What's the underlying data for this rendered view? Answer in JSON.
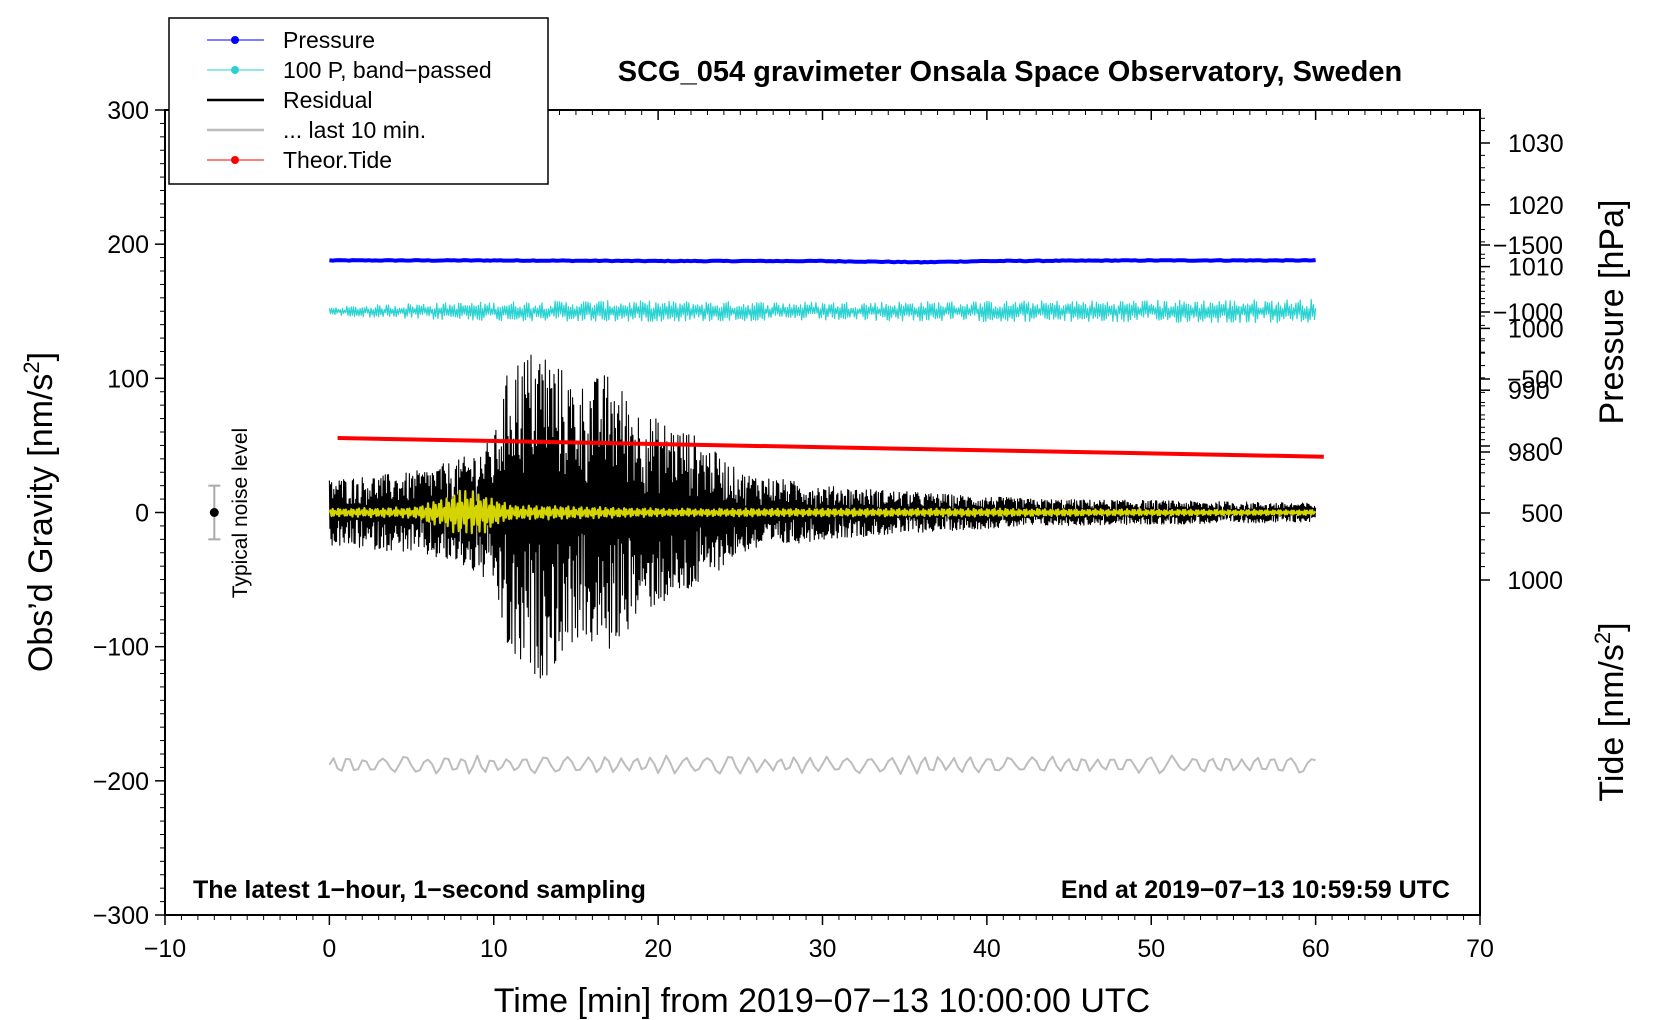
{
  "chart_data": {
    "type": "line",
    "title": "SCG_054 gravimeter Onsala Space Observatory, Sweden",
    "xlabel": "Time [min] from 2019−07−13 10:00:00 UTC",
    "ylabel_left": "Obs’d Gravity [nm/s",
    "ylabel_left_sup": "2",
    "ylabel_left_close": "]",
    "ylabel_right_pressure": "Pressure [hPa]",
    "ylabel_right_tide": "Tide [nm/s",
    "ylabel_right_tide_sup": "2",
    "ylabel_right_tide_close": "]",
    "xlim": [
      -10,
      70
    ],
    "ylim_left": [
      -300,
      300
    ],
    "x_ticks": [
      "−10",
      "0",
      "10",
      "20",
      "30",
      "40",
      "50",
      "60",
      "70"
    ],
    "y_left_ticks": [
      "300",
      "200",
      "100",
      "0",
      "−100",
      "−200",
      "−300"
    ],
    "pressure_axis": {
      "ticks": [
        "1030",
        "1020",
        "1010",
        "1000",
        "990",
        "980"
      ],
      "values": [
        1030,
        1020,
        1010,
        1000,
        990,
        980
      ]
    },
    "tide_axis": {
      "ticks": [
        "1000",
        "500",
        "0",
        "−500",
        "−1000",
        "−1500"
      ],
      "values": [
        1000,
        500,
        0,
        -500,
        -1000,
        -1500
      ]
    },
    "grid": false,
    "legend_position": "top-left",
    "legend": [
      {
        "label": "Pressure",
        "color": "#0000ff",
        "marker": true
      },
      {
        "label": "100 P, band−passed",
        "color": "#2ad2d2",
        "marker": true
      },
      {
        "label": "Residual",
        "color": "#000000",
        "marker": false
      },
      {
        "label": "... last 10 min.",
        "color": "#bdbdbd",
        "marker": false
      },
      {
        "label": "Theor.Tide",
        "color": "#ff0000",
        "marker": true
      }
    ],
    "series": [
      {
        "name": "Pressure",
        "color": "#0000ff",
        "axis": "pressure",
        "x": [
          0,
          10,
          20,
          30,
          36,
          40,
          50,
          60
        ],
        "y": [
          1011.0,
          1011.0,
          1010.9,
          1010.9,
          1010.7,
          1010.9,
          1011.0,
          1011.0
        ]
      },
      {
        "name": "100 P, band−passed",
        "color": "#2ad2d2",
        "axis": "left",
        "x": [
          0,
          60
        ],
        "y_center": 150,
        "amplitude_envelope": [
          [
            0,
            3
          ],
          [
            5,
            6
          ],
          [
            15,
            8
          ],
          [
            30,
            7
          ],
          [
            45,
            8
          ],
          [
            60,
            9
          ]
        ]
      },
      {
        "name": "Residual",
        "color": "#000000",
        "axis": "left",
        "x": [
          0,
          60
        ],
        "y_center": 0,
        "amplitude_envelope": [
          [
            0,
            25
          ],
          [
            5,
            30
          ],
          [
            8,
            40
          ],
          [
            10,
            55
          ],
          [
            11,
            115
          ],
          [
            13,
            125
          ],
          [
            15,
            95
          ],
          [
            17,
            105
          ],
          [
            19,
            75
          ],
          [
            22,
            60
          ],
          [
            25,
            30
          ],
          [
            30,
            20
          ],
          [
            37,
            14
          ],
          [
            43,
            10
          ],
          [
            50,
            9
          ],
          [
            60,
            7
          ]
        ]
      },
      {
        "name": "yellow trace",
        "color": "#d4d400",
        "axis": "left",
        "x": [
          0,
          60
        ],
        "y_center": 0,
        "amplitude_envelope": [
          [
            0,
            3
          ],
          [
            5,
            4
          ],
          [
            6.5,
            10
          ],
          [
            8,
            18
          ],
          [
            9.5,
            15
          ],
          [
            11,
            6
          ],
          [
            20,
            3
          ],
          [
            40,
            3
          ],
          [
            60,
            2
          ]
        ]
      },
      {
        "name": "... last 10 min.",
        "color": "#bdbdbd",
        "axis": "left",
        "x": [
          0,
          60
        ],
        "y_center": -188,
        "amplitude_envelope": [
          [
            0,
            7
          ],
          [
            60,
            7
          ]
        ]
      },
      {
        "name": "Theor.Tide",
        "color": "#ff0000",
        "axis": "tide",
        "x": [
          0.5,
          60.5
        ],
        "y": [
          -60,
          80
        ]
      }
    ],
    "noise_level": {
      "label": "Typical noise level",
      "x": -7,
      "y": 0,
      "error": 20
    },
    "annotations": {
      "bottom_left": "The latest 1−hour, 1−second sampling",
      "bottom_right": "End at 2019−07−13 10:59:59 UTC"
    }
  }
}
